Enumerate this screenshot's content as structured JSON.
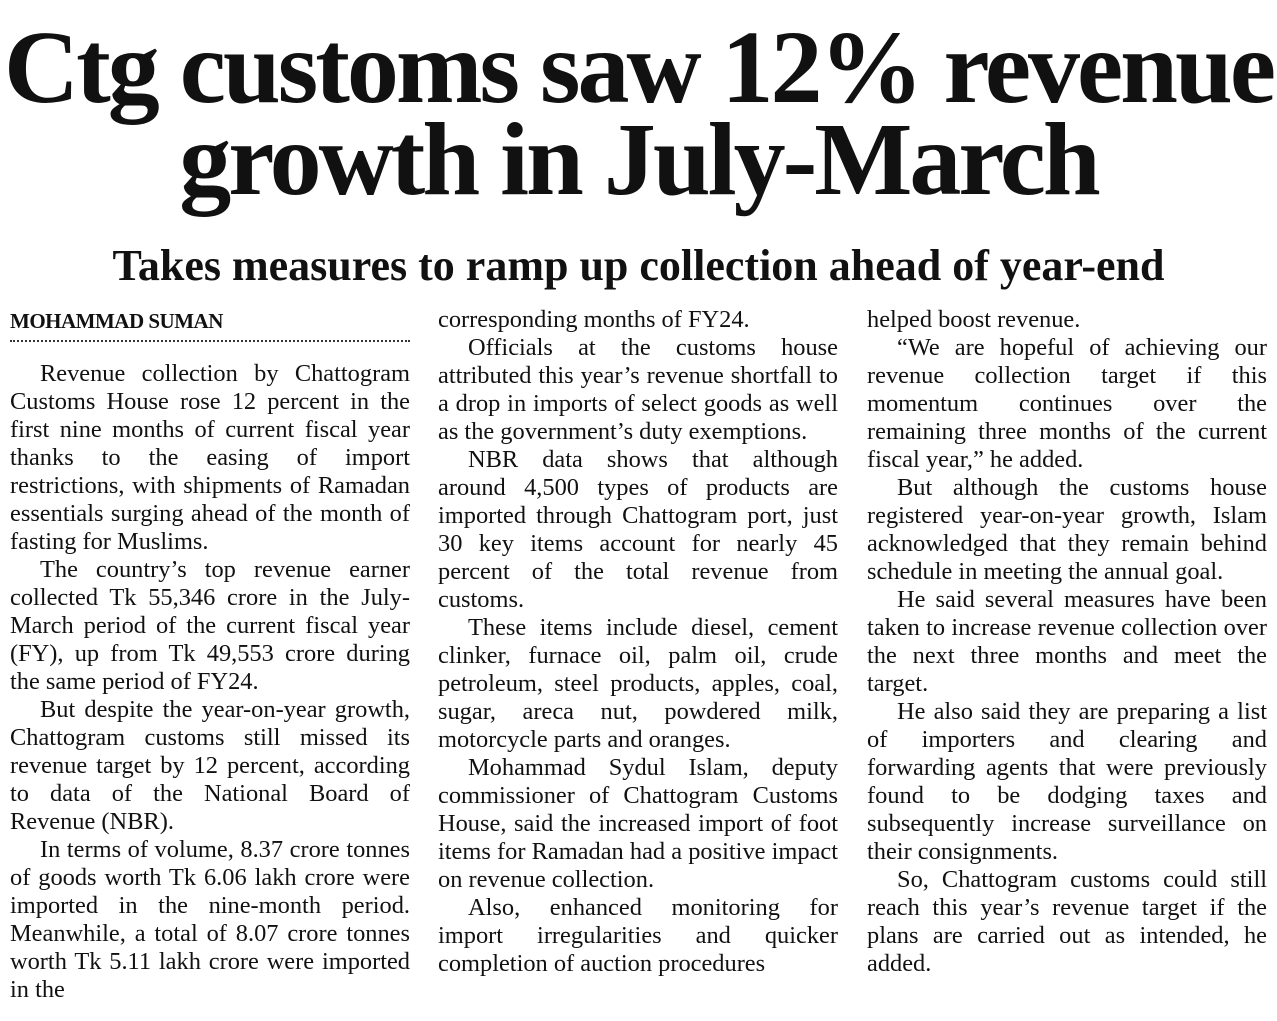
{
  "headline": "Ctg customs saw 12% revenue growth in July-March",
  "subhead": "Takes measures to ramp up collection ahead of year-end",
  "byline": "MOHAMMAD SUMAN",
  "columns": [
    [
      "Revenue collection by Chattogram Customs House rose 12 percent in the first nine months of current fiscal year thanks to the easing of import restrictions, with shipments of Ramadan essentials surging ahead of the month of fasting for Muslims.",
      "The country’s top revenue earner collected Tk 55,346 crore in the July-March period of the current fiscal year (FY), up from Tk 49,553 crore during the same period of FY24.",
      "But despite the year-on-year growth, Chattogram customs still missed its revenue target by 12 percent, according to data of the National Board of Revenue (NBR).",
      "In terms of volume, 8.37 crore tonnes of goods worth Tk 6.06 lakh crore were imported in the nine-month period. Meanwhile, a total of 8.07 crore tonnes worth Tk 5.11 lakh crore were imported in the"
    ],
    [
      "corresponding months of FY24.",
      "Officials at the customs house attributed this year’s revenue shortfall to a drop in imports of select goods as well as the government’s duty exemptions.",
      "NBR data shows that although around 4,500 types of products are imported through Chattogram port, just 30 key items account for nearly 45 percent of the total revenue from customs.",
      "These items include diesel, cement clinker, furnace oil, palm oil, crude petroleum, steel products, apples, coal, sugar, areca nut, powdered milk, motorcycle parts and oranges.",
      "Mohammad Sydul Islam, deputy commissioner of Chattogram Customs House, said the increased import of foot items for Ramadan had a positive impact on revenue collection.",
      "Also, enhanced monitoring for import irregularities and quicker completion of auction procedures"
    ],
    [
      "helped boost revenue.",
      "“We are hopeful of achieving our revenue collection target if this momentum continues over the remaining three months of the current fiscal year,” he added.",
      "But although the customs house registered year-on-year growth, Islam acknowledged that they remain behind schedule in meeting the annual goal.",
      "He said several measures have been taken to increase revenue collection over the next three months and meet the target.",
      "He also said they are preparing a list of importers and clearing and forwarding agents that were previously found to be dodging taxes and subsequently increase surveillance on their consignments.",
      "So, Chattogram customs could still reach this year’s revenue target if the plans are carried out as intended, he added."
    ]
  ]
}
